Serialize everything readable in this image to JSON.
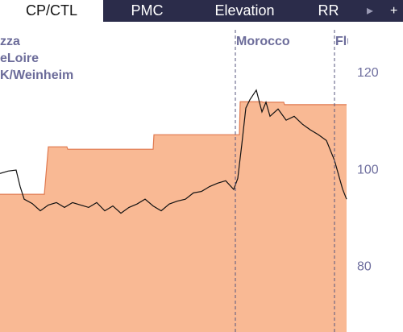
{
  "tabs": [
    "CP/CTL",
    "PMC",
    "Elevation",
    "RR"
  ],
  "selected_tab": 0,
  "chart_data": {
    "type": "area-line",
    "ylim": [
      66.3,
      130.3
    ],
    "yticks": [
      80,
      100,
      120
    ],
    "xlim": [
      0,
      430
    ],
    "annotations_left": [
      "zza",
      "eLoire",
      "K/Weinheim"
    ],
    "annotations": [
      {
        "x": 292,
        "label": "Morocco"
      },
      {
        "x": 415,
        "label": "Flu"
      }
    ],
    "series": [
      {
        "kind": "area",
        "color": "#f9b994",
        "stroke": "#e0794f",
        "x": [
          0,
          55,
          60,
          83,
          84,
          190,
          191,
          297,
          298,
          325,
          326,
          352,
          353,
          430
        ],
        "values": [
          94.7,
          94.7,
          104.5,
          104.5,
          104,
          104,
          107,
          107,
          113.8,
          113.8,
          113.7,
          113.7,
          113.2,
          113.2
        ]
      },
      {
        "kind": "line",
        "color": "#111111",
        "x": [
          0,
          10,
          20,
          25,
          30,
          40,
          50,
          60,
          70,
          80,
          90,
          100,
          110,
          120,
          130,
          140,
          150,
          160,
          170,
          180,
          190,
          200,
          210,
          220,
          230,
          240,
          250,
          260,
          270,
          280,
          290,
          295,
          300,
          305,
          310,
          318,
          325,
          330,
          335,
          345,
          355,
          365,
          375,
          385,
          395,
          405,
          415,
          425,
          430
        ],
        "values": [
          99.0,
          99.5,
          99.7,
          96.3,
          93.7,
          92.8,
          91.3,
          92.5,
          93,
          92,
          93,
          92.5,
          92,
          93,
          91.3,
          92.3,
          90.8,
          92,
          92.7,
          93.7,
          92.3,
          91.3,
          92.7,
          93.3,
          93.7,
          95,
          95.3,
          96.3,
          97,
          97.5,
          95.7,
          98,
          105,
          112.5,
          114.2,
          116.2,
          111.7,
          113.7,
          110.8,
          112.3,
          110,
          110.8,
          109.2,
          108,
          107,
          105.8,
          101.7,
          95.8,
          93.7
        ]
      }
    ]
  }
}
